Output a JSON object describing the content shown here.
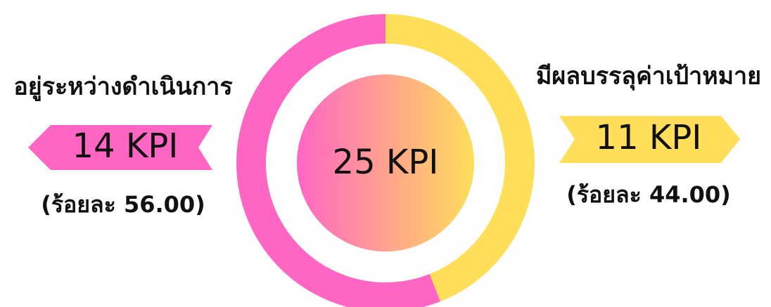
{
  "chart_data": {
    "type": "pie",
    "categories": [
      "อยู่ระหว่างดำเนินการ",
      "มีผลบรรลุค่าเป้าหมาย"
    ],
    "values": [
      14,
      11
    ],
    "value_labels": [
      "14 KPI",
      "11 KPI"
    ],
    "percent_labels": [
      "(ร้อยละ 56.00)",
      "(ร้อยละ 44.00)"
    ],
    "colors": [
      "#ff66c4",
      "#ffde59"
    ],
    "center_label": "25 KPI"
  }
}
